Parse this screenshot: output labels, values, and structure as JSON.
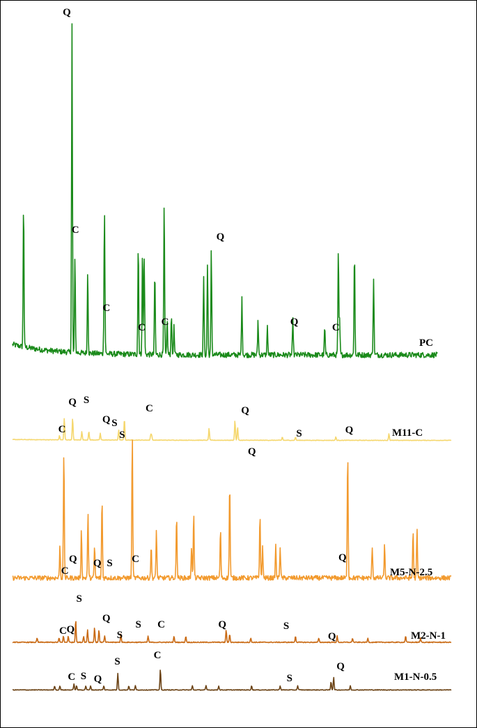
{
  "chart_data": {
    "type": "line",
    "title": "",
    "xlabel": "",
    "ylabel": "",
    "grid": false,
    "x_range": [
      0,
      1000
    ],
    "series": [
      {
        "name": "PC",
        "color": "#1a8a1a",
        "baseline_start": 0.22,
        "baseline_end": 0.07,
        "decay": 0.1,
        "noise": 0.04,
        "peaks": [
          [
            26,
            2.1
          ],
          [
            140,
            4.7
          ],
          [
            147,
            1.4
          ],
          [
            177,
            1.2
          ],
          [
            216,
            1.3
          ],
          [
            217,
            1.0
          ],
          [
            296,
            1.6
          ],
          [
            306,
            1.5
          ],
          [
            310,
            1.4
          ],
          [
            335,
            1.2
          ],
          [
            357,
            2.2
          ],
          [
            364,
            0.5
          ],
          [
            374,
            0.6
          ],
          [
            380,
            0.4
          ],
          [
            450,
            1.1
          ],
          [
            459,
            1.3
          ],
          [
            468,
            1.5
          ],
          [
            540,
            0.8
          ],
          [
            578,
            0.5
          ],
          [
            600,
            0.4
          ],
          [
            660,
            0.5
          ],
          [
            735,
            0.4
          ],
          [
            767,
            1.5
          ],
          [
            770,
            0.5
          ],
          [
            805,
            1.5
          ],
          [
            850,
            1.1
          ]
        ],
        "labels": [
          [
            140,
            "Q"
          ],
          [
            158,
            "C"
          ],
          [
            223,
            "C"
          ],
          [
            297,
            "C"
          ],
          [
            346,
            "C"
          ],
          [
            462,
            "Q"
          ],
          [
            617,
            "Q"
          ],
          [
            704,
            "C"
          ]
        ]
      },
      {
        "name": "M11-C",
        "color": "#f5d76e",
        "baseline_start": 0.07,
        "baseline_end": 0.02,
        "decay": 0.25,
        "noise": 0.015,
        "peaks": [
          [
            107,
            0.25
          ],
          [
            118,
            1.3
          ],
          [
            137,
            1.3
          ],
          [
            158,
            0.5
          ],
          [
            174,
            0.5
          ],
          [
            200,
            0.4
          ],
          [
            242,
            0.6
          ],
          [
            255,
            1.3
          ],
          [
            317,
            0.3
          ],
          [
            315,
            0.3
          ],
          [
            448,
            0.7
          ],
          [
            507,
            1.2
          ],
          [
            513,
            0.8
          ],
          [
            615,
            0.2
          ],
          [
            645,
            0.2
          ],
          [
            737,
            0.2
          ],
          [
            858,
            0.4
          ]
        ],
        "labels": [
          [
            130,
            "C"
          ],
          [
            152,
            "Q"
          ],
          [
            181,
            "S"
          ],
          [
            223,
            "Q"
          ],
          [
            240,
            "S"
          ],
          [
            256,
            "S"
          ],
          [
            313,
            "C"
          ],
          [
            514,
            "Q"
          ],
          [
            627,
            "S"
          ],
          [
            732,
            "Q"
          ]
        ]
      },
      {
        "name": "M5-N-2.5",
        "color": "#f29a2e",
        "baseline_start": 0.04,
        "baseline_end": 0.04,
        "decay": 0.3,
        "noise": 0.015,
        "peaks": [
          [
            108,
            0.2
          ],
          [
            117,
            0.8
          ],
          [
            157,
            0.3
          ],
          [
            172,
            0.4
          ],
          [
            187,
            0.2
          ],
          [
            204,
            0.5
          ],
          [
            273,
            0.9
          ],
          [
            316,
            0.2
          ],
          [
            328,
            0.3
          ],
          [
            374,
            0.4
          ],
          [
            408,
            0.2
          ],
          [
            413,
            0.4
          ],
          [
            474,
            0.3
          ],
          [
            495,
            0.6
          ],
          [
            564,
            0.4
          ],
          [
            570,
            0.2
          ],
          [
            600,
            0.2
          ],
          [
            610,
            0.2
          ],
          [
            764,
            0.8
          ],
          [
            820,
            0.2
          ],
          [
            848,
            0.2
          ],
          [
            913,
            0.3
          ],
          [
            922,
            0.3
          ]
        ],
        "labels": [
          [
            136,
            "C"
          ],
          [
            153,
            "Q"
          ],
          [
            204,
            "Q"
          ],
          [
            230,
            "S"
          ],
          [
            284,
            "C"
          ],
          [
            528,
            "Q"
          ],
          [
            718,
            "Q"
          ]
        ]
      },
      {
        "name": "M2-N-1",
        "color": "#c96a14",
        "baseline_start": 0.03,
        "baseline_end": 0.03,
        "decay": 0.3,
        "noise": 0.02,
        "peaks": [
          [
            56,
            0.2
          ],
          [
            106,
            0.2
          ],
          [
            116,
            0.3
          ],
          [
            127,
            0.3
          ],
          [
            144,
            1.1
          ],
          [
            162,
            0.3
          ],
          [
            171,
            0.6
          ],
          [
            187,
            0.7
          ],
          [
            197,
            0.6
          ],
          [
            210,
            0.3
          ],
          [
            247,
            0.4
          ],
          [
            309,
            0.3
          ],
          [
            368,
            0.3
          ],
          [
            395,
            0.3
          ],
          [
            487,
            0.6
          ],
          [
            495,
            0.4
          ],
          [
            543,
            0.2
          ],
          [
            645,
            0.3
          ],
          [
            698,
            0.2
          ],
          [
            740,
            0.3
          ],
          [
            775,
            0.2
          ],
          [
            810,
            0.2
          ],
          [
            896,
            0.3
          ],
          [
            930,
            0.2
          ]
        ],
        "labels": [
          [
            132,
            "C"
          ],
          [
            148,
            "Q"
          ],
          [
            166,
            "S"
          ],
          [
            223,
            "Q"
          ],
          [
            251,
            "S"
          ],
          [
            290,
            "S"
          ],
          [
            338,
            "C"
          ],
          [
            466,
            "Q"
          ],
          [
            600,
            "S"
          ],
          [
            696,
            "Q"
          ]
        ]
      },
      {
        "name": "M1-N-0.5",
        "color": "#6b4214",
        "baseline_start": 0.02,
        "baseline_end": 0.02,
        "decay": 0.3,
        "noise": 0.015,
        "peaks": [
          [
            96,
            0.2
          ],
          [
            108,
            0.2
          ],
          [
            140,
            0.3
          ],
          [
            146,
            0.2
          ],
          [
            167,
            0.2
          ],
          [
            178,
            0.2
          ],
          [
            208,
            0.2
          ],
          [
            240,
            0.8
          ],
          [
            265,
            0.2
          ],
          [
            280,
            0.2
          ],
          [
            337,
            1.0
          ],
          [
            410,
            0.2
          ],
          [
            441,
            0.2
          ],
          [
            470,
            0.2
          ],
          [
            545,
            0.2
          ],
          [
            610,
            0.2
          ],
          [
            650,
            0.2
          ],
          [
            726,
            0.4
          ],
          [
            732,
            0.6
          ],
          [
            770,
            0.2
          ]
        ],
        "labels": [
          [
            150,
            "C"
          ],
          [
            175,
            "S"
          ],
          [
            205,
            "Q"
          ],
          [
            246,
            "S"
          ],
          [
            330,
            "C"
          ],
          [
            607,
            "S"
          ],
          [
            714,
            "Q"
          ]
        ]
      }
    ]
  }
}
